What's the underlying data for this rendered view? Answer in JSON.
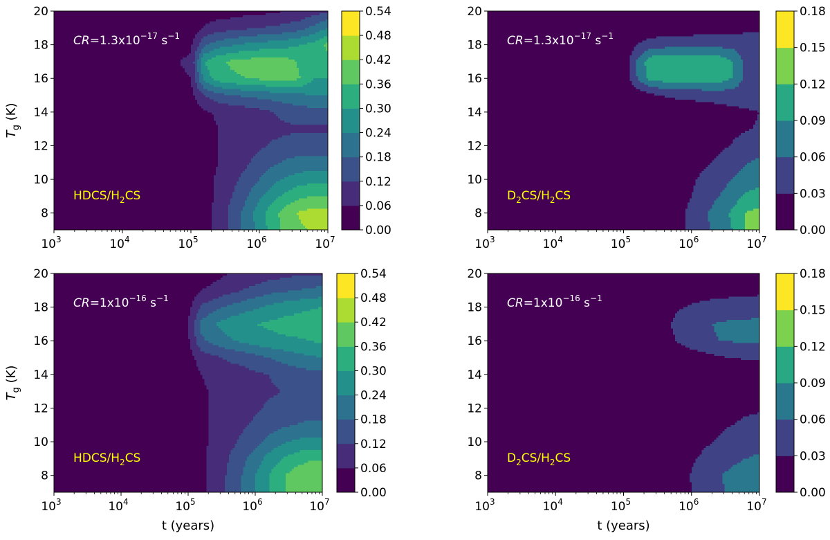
{
  "colors": {
    "viridis": [
      "#440154",
      "#482878",
      "#3e4989",
      "#31688e",
      "#26828e",
      "#1f9e89",
      "#35b779",
      "#6ece58",
      "#b5de2b",
      "#fde725"
    ],
    "label_yellow": "#ffff00",
    "annotation_white": "#ffffff",
    "axis": "#000000"
  },
  "chart_data": [
    {
      "type": "heatmap",
      "panel": "top-left",
      "title": "",
      "xlabel": "",
      "ylabel": "T_g (K)",
      "xscale": "log",
      "xlim": [
        1000,
        10000000
      ],
      "ylim": [
        7,
        20
      ],
      "x_tick_exponents": [
        "3",
        "4",
        "5",
        "6",
        "7"
      ],
      "y_ticks": [
        "8",
        "10",
        "12",
        "14",
        "16",
        "18",
        "20"
      ],
      "annotation": {
        "label": "CR",
        "prefix": "=1.3x10",
        "exponent": "−17",
        "unit": " s",
        "unit_exp": "−1"
      },
      "species_label": {
        "a": "HDCS/H",
        "sub": "2",
        "b": "CS"
      },
      "colorbar": {
        "levels": [
          "0.00",
          "0.06",
          "0.12",
          "0.18",
          "0.24",
          "0.30",
          "0.36",
          "0.42",
          "0.48",
          "0.54"
        ]
      },
      "log_t": [
        3,
        4,
        5,
        5.2,
        5.4,
        5.6,
        5.8,
        6,
        6.2,
        6.4,
        6.6,
        6.8,
        7
      ],
      "T": [
        7,
        8,
        9,
        10,
        11,
        12,
        13,
        14,
        15,
        16,
        17,
        18,
        19,
        20
      ],
      "z": [
        [
          0.01,
          0.01,
          0.02,
          0.04,
          0.08,
          0.14,
          0.2,
          0.26,
          0.33,
          0.38,
          0.41,
          0.43,
          0.43
        ],
        [
          0.01,
          0.01,
          0.02,
          0.04,
          0.08,
          0.14,
          0.2,
          0.27,
          0.34,
          0.39,
          0.43,
          0.44,
          0.44
        ],
        [
          0.01,
          0.01,
          0.02,
          0.04,
          0.07,
          0.12,
          0.17,
          0.23,
          0.28,
          0.32,
          0.35,
          0.36,
          0.36
        ],
        [
          0.01,
          0.01,
          0.02,
          0.04,
          0.07,
          0.1,
          0.14,
          0.18,
          0.22,
          0.25,
          0.27,
          0.28,
          0.28
        ],
        [
          0.01,
          0.01,
          0.02,
          0.04,
          0.06,
          0.09,
          0.11,
          0.14,
          0.17,
          0.19,
          0.2,
          0.2,
          0.2
        ],
        [
          0.01,
          0.01,
          0.02,
          0.04,
          0.06,
          0.08,
          0.1,
          0.11,
          0.13,
          0.14,
          0.15,
          0.15,
          0.15
        ],
        [
          0.01,
          0.01,
          0.02,
          0.04,
          0.06,
          0.07,
          0.08,
          0.09,
          0.1,
          0.11,
          0.11,
          0.11,
          0.11
        ],
        [
          0.01,
          0.01,
          0.02,
          0.05,
          0.07,
          0.08,
          0.09,
          0.1,
          0.12,
          0.14,
          0.15,
          0.16,
          0.16
        ],
        [
          0.01,
          0.01,
          0.04,
          0.12,
          0.16,
          0.18,
          0.19,
          0.2,
          0.21,
          0.22,
          0.23,
          0.24,
          0.24
        ],
        [
          0.01,
          0.01,
          0.06,
          0.27,
          0.33,
          0.35,
          0.36,
          0.37,
          0.38,
          0.39,
          0.36,
          0.3,
          0.3
        ],
        [
          0.01,
          0.01,
          0.07,
          0.3,
          0.35,
          0.37,
          0.38,
          0.39,
          0.4,
          0.38,
          0.35,
          0.33,
          0.33
        ],
        [
          0.01,
          0.01,
          0.05,
          0.17,
          0.21,
          0.23,
          0.25,
          0.26,
          0.27,
          0.28,
          0.3,
          0.32,
          0.38
        ],
        [
          0.01,
          0.01,
          0.02,
          0.07,
          0.09,
          0.1,
          0.11,
          0.12,
          0.13,
          0.14,
          0.16,
          0.2,
          0.24
        ],
        [
          0.01,
          0.01,
          0.01,
          0.02,
          0.03,
          0.03,
          0.04,
          0.04,
          0.05,
          0.06,
          0.07,
          0.09,
          0.11
        ]
      ]
    },
    {
      "type": "heatmap",
      "panel": "top-right",
      "title": "",
      "xlabel": "",
      "ylabel": "",
      "xscale": "log",
      "xlim": [
        1000,
        10000000
      ],
      "ylim": [
        7,
        20
      ],
      "x_tick_exponents": [
        "3",
        "4",
        "5",
        "6",
        "7"
      ],
      "y_ticks": [
        "8",
        "10",
        "12",
        "14",
        "16",
        "18",
        "20"
      ],
      "annotation": {
        "label": "CR",
        "prefix": "=1.3x10",
        "exponent": "−17",
        "unit": " s",
        "unit_exp": "−1"
      },
      "species_label": {
        "a": "D",
        "sub": "2",
        "b": "CS/H",
        "sub2": "2",
        "c": "CS"
      },
      "colorbar": {
        "levels": [
          "0.00",
          "0.03",
          "0.06",
          "0.09",
          "0.12",
          "0.15",
          "0.18"
        ]
      },
      "log_t": [
        3,
        4,
        5,
        5.2,
        5.4,
        5.6,
        5.8,
        6,
        6.2,
        6.4,
        6.6,
        6.8,
        7
      ],
      "T": [
        7,
        8,
        9,
        10,
        11,
        12,
        13,
        14,
        15,
        16,
        17,
        18,
        19,
        20
      ],
      "z": [
        [
          0.005,
          0.005,
          0.005,
          0.01,
          0.015,
          0.02,
          0.025,
          0.035,
          0.055,
          0.07,
          0.09,
          0.12,
          0.13
        ],
        [
          0.005,
          0.005,
          0.005,
          0.01,
          0.015,
          0.02,
          0.025,
          0.035,
          0.055,
          0.075,
          0.095,
          0.12,
          0.13
        ],
        [
          0.005,
          0.005,
          0.005,
          0.008,
          0.012,
          0.018,
          0.022,
          0.03,
          0.045,
          0.06,
          0.075,
          0.095,
          0.1
        ],
        [
          0.005,
          0.005,
          0.005,
          0.006,
          0.01,
          0.015,
          0.02,
          0.026,
          0.036,
          0.048,
          0.06,
          0.075,
          0.08
        ],
        [
          0.005,
          0.005,
          0.005,
          0.005,
          0.008,
          0.012,
          0.016,
          0.02,
          0.026,
          0.034,
          0.045,
          0.058,
          0.065
        ],
        [
          0.005,
          0.005,
          0.005,
          0.005,
          0.006,
          0.009,
          0.012,
          0.015,
          0.019,
          0.024,
          0.032,
          0.042,
          0.048
        ],
        [
          0.005,
          0.005,
          0.005,
          0.005,
          0.005,
          0.007,
          0.009,
          0.011,
          0.014,
          0.018,
          0.023,
          0.028,
          0.032
        ],
        [
          0.005,
          0.005,
          0.005,
          0.005,
          0.005,
          0.006,
          0.008,
          0.01,
          0.013,
          0.017,
          0.022,
          0.026,
          0.03
        ],
        [
          0.005,
          0.005,
          0.005,
          0.01,
          0.022,
          0.032,
          0.036,
          0.038,
          0.04,
          0.042,
          0.043,
          0.043,
          0.043
        ],
        [
          0.005,
          0.005,
          0.005,
          0.06,
          0.1,
          0.104,
          0.105,
          0.105,
          0.105,
          0.104,
          0.09,
          0.05,
          0.045
        ],
        [
          0.005,
          0.005,
          0.005,
          0.065,
          0.11,
          0.112,
          0.114,
          0.114,
          0.114,
          0.11,
          0.09,
          0.05,
          0.048
        ],
        [
          0.005,
          0.005,
          0.005,
          0.03,
          0.045,
          0.048,
          0.05,
          0.05,
          0.05,
          0.05,
          0.05,
          0.048,
          0.05
        ],
        [
          0.005,
          0.005,
          0.005,
          0.005,
          0.008,
          0.01,
          0.012,
          0.014,
          0.016,
          0.018,
          0.02,
          0.022,
          0.024
        ],
        [
          0.005,
          0.005,
          0.005,
          0.005,
          0.005,
          0.005,
          0.005,
          0.005,
          0.005,
          0.005,
          0.005,
          0.005,
          0.005
        ]
      ]
    },
    {
      "type": "heatmap",
      "panel": "bottom-left",
      "title": "",
      "xlabel": "t (years)",
      "ylabel": "T_g (K)",
      "xscale": "log",
      "xlim": [
        1000,
        10000000
      ],
      "ylim": [
        7,
        20
      ],
      "x_tick_exponents": [
        "3",
        "4",
        "5",
        "6",
        "7"
      ],
      "y_ticks": [
        "8",
        "10",
        "12",
        "14",
        "16",
        "18",
        "20"
      ],
      "annotation": {
        "label": "CR",
        "prefix": "=1x10",
        "exponent": "−16",
        "unit": " s",
        "unit_exp": "−1"
      },
      "species_label": {
        "a": "HDCS/H",
        "sub": "2",
        "b": "CS"
      },
      "colorbar": {
        "levels": [
          "0.00",
          "0.06",
          "0.12",
          "0.18",
          "0.24",
          "0.30",
          "0.36",
          "0.42",
          "0.48",
          "0.54"
        ]
      },
      "log_t": [
        3,
        4,
        5,
        5.2,
        5.4,
        5.6,
        5.8,
        6,
        6.2,
        6.4,
        6.6,
        6.8,
        7
      ],
      "T": [
        7,
        8,
        9,
        10,
        11,
        12,
        13,
        14,
        15,
        16,
        17,
        18,
        19,
        20
      ],
      "z": [
        [
          0.01,
          0.01,
          0.02,
          0.05,
          0.08,
          0.13,
          0.18,
          0.24,
          0.3,
          0.35,
          0.38,
          0.4,
          0.4
        ],
        [
          0.01,
          0.01,
          0.02,
          0.05,
          0.08,
          0.13,
          0.18,
          0.24,
          0.3,
          0.35,
          0.39,
          0.41,
          0.42
        ],
        [
          0.01,
          0.01,
          0.02,
          0.05,
          0.08,
          0.12,
          0.16,
          0.21,
          0.26,
          0.3,
          0.33,
          0.35,
          0.35
        ],
        [
          0.01,
          0.01,
          0.02,
          0.05,
          0.07,
          0.1,
          0.13,
          0.16,
          0.2,
          0.23,
          0.25,
          0.26,
          0.26
        ],
        [
          0.01,
          0.01,
          0.02,
          0.05,
          0.07,
          0.09,
          0.11,
          0.13,
          0.15,
          0.17,
          0.18,
          0.19,
          0.19
        ],
        [
          0.01,
          0.01,
          0.02,
          0.05,
          0.07,
          0.08,
          0.1,
          0.11,
          0.13,
          0.14,
          0.15,
          0.15,
          0.15
        ],
        [
          0.01,
          0.01,
          0.02,
          0.05,
          0.07,
          0.08,
          0.09,
          0.1,
          0.11,
          0.12,
          0.13,
          0.13,
          0.13
        ],
        [
          0.01,
          0.01,
          0.02,
          0.06,
          0.08,
          0.09,
          0.1,
          0.11,
          0.12,
          0.14,
          0.15,
          0.16,
          0.16
        ],
        [
          0.01,
          0.01,
          0.03,
          0.09,
          0.11,
          0.13,
          0.14,
          0.16,
          0.18,
          0.2,
          0.22,
          0.23,
          0.24
        ],
        [
          0.01,
          0.01,
          0.05,
          0.17,
          0.2,
          0.23,
          0.25,
          0.27,
          0.28,
          0.29,
          0.29,
          0.3,
          0.31
        ],
        [
          0.01,
          0.01,
          0.06,
          0.2,
          0.24,
          0.27,
          0.29,
          0.3,
          0.31,
          0.32,
          0.33,
          0.34,
          0.35
        ],
        [
          0.01,
          0.01,
          0.04,
          0.13,
          0.16,
          0.19,
          0.21,
          0.23,
          0.25,
          0.27,
          0.28,
          0.29,
          0.3
        ],
        [
          0.01,
          0.01,
          0.02,
          0.06,
          0.08,
          0.1,
          0.12,
          0.14,
          0.16,
          0.17,
          0.18,
          0.19,
          0.2
        ],
        [
          0.01,
          0.01,
          0.01,
          0.02,
          0.04,
          0.06,
          0.07,
          0.08,
          0.09,
          0.1,
          0.11,
          0.11,
          0.11
        ]
      ]
    },
    {
      "type": "heatmap",
      "panel": "bottom-right",
      "title": "",
      "xlabel": "t (years)",
      "ylabel": "",
      "xscale": "log",
      "xlim": [
        1000,
        10000000
      ],
      "ylim": [
        7,
        20
      ],
      "x_tick_exponents": [
        "3",
        "4",
        "5",
        "6",
        "7"
      ],
      "y_ticks": [
        "8",
        "10",
        "12",
        "14",
        "16",
        "18",
        "20"
      ],
      "annotation": {
        "label": "CR",
        "prefix": "=1x10",
        "exponent": "−16",
        "unit": " s",
        "unit_exp": "−1"
      },
      "species_label": {
        "a": "D",
        "sub": "2",
        "b": "CS/H",
        "sub2": "2",
        "c": "CS"
      },
      "colorbar": {
        "levels": [
          "0.00",
          "0.03",
          "0.06",
          "0.09",
          "0.12",
          "0.15",
          "0.18"
        ]
      },
      "log_t": [
        3,
        4,
        5,
        5.2,
        5.4,
        5.6,
        5.8,
        6,
        6.2,
        6.4,
        6.6,
        6.8,
        7
      ],
      "T": [
        7,
        8,
        9,
        10,
        11,
        12,
        13,
        14,
        15,
        16,
        17,
        18,
        19,
        20
      ],
      "z": [
        [
          0.005,
          0.005,
          0.005,
          0.005,
          0.005,
          0.008,
          0.015,
          0.03,
          0.045,
          0.055,
          0.065,
          0.075,
          0.08
        ],
        [
          0.005,
          0.005,
          0.005,
          0.005,
          0.005,
          0.008,
          0.016,
          0.032,
          0.048,
          0.058,
          0.068,
          0.08,
          0.085
        ],
        [
          0.005,
          0.005,
          0.005,
          0.005,
          0.005,
          0.007,
          0.013,
          0.026,
          0.036,
          0.044,
          0.052,
          0.06,
          0.065
        ],
        [
          0.005,
          0.005,
          0.005,
          0.005,
          0.005,
          0.006,
          0.01,
          0.018,
          0.026,
          0.033,
          0.04,
          0.045,
          0.05
        ],
        [
          0.005,
          0.005,
          0.005,
          0.005,
          0.005,
          0.005,
          0.008,
          0.013,
          0.019,
          0.025,
          0.03,
          0.035,
          0.038
        ],
        [
          0.005,
          0.005,
          0.005,
          0.005,
          0.005,
          0.005,
          0.006,
          0.009,
          0.013,
          0.017,
          0.021,
          0.025,
          0.027
        ],
        [
          0.005,
          0.005,
          0.005,
          0.005,
          0.005,
          0.005,
          0.005,
          0.007,
          0.009,
          0.011,
          0.013,
          0.015,
          0.016
        ],
        [
          0.005,
          0.005,
          0.005,
          0.005,
          0.005,
          0.005,
          0.005,
          0.006,
          0.008,
          0.01,
          0.012,
          0.013,
          0.014
        ],
        [
          0.005,
          0.005,
          0.005,
          0.005,
          0.005,
          0.006,
          0.008,
          0.012,
          0.018,
          0.026,
          0.03,
          0.032,
          0.033
        ],
        [
          0.005,
          0.005,
          0.005,
          0.005,
          0.006,
          0.015,
          0.032,
          0.046,
          0.056,
          0.06,
          0.062,
          0.063,
          0.064
        ],
        [
          0.005,
          0.005,
          0.005,
          0.005,
          0.008,
          0.022,
          0.04,
          0.05,
          0.058,
          0.062,
          0.065,
          0.066,
          0.066
        ],
        [
          0.005,
          0.005,
          0.005,
          0.005,
          0.006,
          0.014,
          0.026,
          0.034,
          0.039,
          0.042,
          0.044,
          0.046,
          0.048
        ],
        [
          0.005,
          0.005,
          0.005,
          0.005,
          0.005,
          0.006,
          0.01,
          0.013,
          0.016,
          0.018,
          0.02,
          0.021,
          0.022
        ],
        [
          0.005,
          0.005,
          0.005,
          0.005,
          0.005,
          0.005,
          0.005,
          0.005,
          0.006,
          0.007,
          0.008,
          0.009,
          0.01
        ]
      ]
    }
  ]
}
